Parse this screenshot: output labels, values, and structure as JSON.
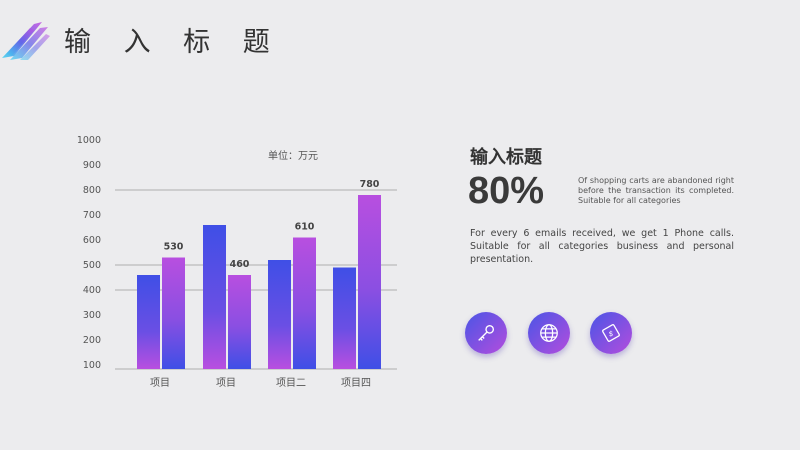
{
  "header": {
    "title": "输 入 标 题"
  },
  "panel": {
    "title": "输入标题",
    "percent": "80%",
    "percent_desc": "Of shopping carts are abandoned right before the transaction its completed. Suitable for all categories",
    "body_text": "For every 6 emails received, we get 1 Phone calls. Suitable for all categories business and personal presentation."
  },
  "icons": [
    "key-icon",
    "globe-icon",
    "money-icon"
  ],
  "colors": {
    "accent_blue": "#3f4fe6",
    "accent_purple": "#b84fe0",
    "background": "#ececee"
  },
  "chart_data": {
    "type": "bar",
    "unit_label": "单位：万元",
    "categories": [
      "项目",
      "项目",
      "项目二",
      "项目四"
    ],
    "series": [
      {
        "values": [
          460,
          660,
          520,
          490
        ]
      },
      {
        "values": [
          530,
          460,
          610,
          780
        ]
      }
    ],
    "data_labels": [
      "530",
      "460",
      "610",
      "780"
    ],
    "yticks": [
      100,
      200,
      300,
      400,
      500,
      600,
      700,
      800,
      900,
      1000
    ],
    "ylim": [
      100,
      1000
    ],
    "grid": true
  }
}
